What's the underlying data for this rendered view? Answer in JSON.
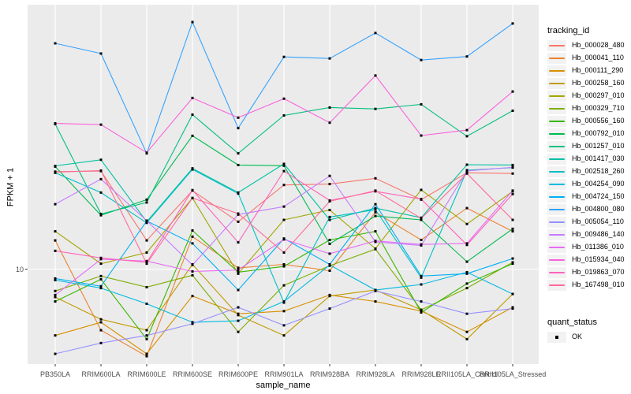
{
  "figure": {
    "background": "#FFFFFF",
    "panel_background": "#EBEBEB",
    "grid_color": "#FFFFFF",
    "tick_mark_color": "#333333",
    "tick_label_color": "#4D4D4D",
    "axis_title_color": "#000000",
    "marker_color": "#000000",
    "legend_key_background": "#F2F2F2"
  },
  "axes": {
    "x_title": "sample_name",
    "y_title": "FPKM + 1",
    "y_tick_labels": [
      "10"
    ]
  },
  "legend": {
    "tracking_title": "tracking_id",
    "quant_title": "quant_status",
    "quant_items": [
      {
        "label": "OK",
        "marker": "filled-black-square"
      }
    ]
  },
  "chart_data": {
    "type": "line",
    "title": "",
    "xlabel": "sample_name",
    "ylabel": "FPKM + 1",
    "y_scale": "log10",
    "ylim_log10": [
      0.43,
      2.59
    ],
    "y_ticks": [
      10
    ],
    "grid": "vertical major gridlines per category + horizontal gridline at y=10",
    "legend_position": "right",
    "marker": "small black square (quant_status OK)",
    "categories": [
      "PB350LA",
      "RRIM600LA",
      "RRIM600LE",
      "RRIM600SE",
      "RRIM600PE",
      "RRIM901LA",
      "RRIM928BA",
      "RRIM928LA",
      "RRIM928LE",
      "RRII105LA_Control",
      "RRII105LA_Stressed"
    ],
    "series": [
      {
        "name": "Hb_000028_480",
        "color": "#F8766D",
        "values": [
          38.6,
          38.9,
          14.9,
          29.7,
          19.3,
          32.1,
          32.5,
          35.2,
          26.2,
          38.0,
          37.6
        ]
      },
      {
        "name": "Hb_000041_110",
        "color": "#EA8331",
        "values": [
          14.9,
          4.3,
          3.0,
          15.7,
          10.2,
          10.7,
          9.8,
          22.0,
          15.0,
          23.3,
          16.9
        ]
      },
      {
        "name": "Hb_000111_290",
        "color": "#D89000",
        "values": [
          4.0,
          4.8,
          3.1,
          6.9,
          5.4,
          5.6,
          7.0,
          6.4,
          5.6,
          4.2,
          5.9
        ]
      },
      {
        "name": "Hb_000258_160",
        "color": "#C09B00",
        "values": [
          6.8,
          5.0,
          4.3,
          10.7,
          5.3,
          4.0,
          6.9,
          7.5,
          5.7,
          3.8,
          7.1
        ]
      },
      {
        "name": "Hb_000297_010",
        "color": "#A3A500",
        "values": [
          16.9,
          10.8,
          12.6,
          26.8,
          9.4,
          19.8,
          22.7,
          13.3,
          30.0,
          18.7,
          29.4
        ]
      },
      {
        "name": "Hb_000329_710",
        "color": "#7CAE00",
        "values": [
          7.4,
          9.1,
          7.8,
          9.2,
          4.2,
          8.0,
          10.5,
          13.2,
          5.7,
          7.7,
          11.0
        ]
      },
      {
        "name": "Hb_000556_160",
        "color": "#39B600",
        "values": [
          6.4,
          8.7,
          3.8,
          17.1,
          9.6,
          10.4,
          15.0,
          16.9,
          5.5,
          8.2,
          10.8
        ]
      },
      {
        "name": "Hb_000792_010",
        "color": "#00BB4E",
        "values": [
          41.4,
          21.1,
          26.2,
          63.4,
          42.3,
          41.9,
          14.2,
          20.9,
          19.8,
          11.1,
          17.5
        ]
      },
      {
        "name": "Hb_001257_010",
        "color": "#00BF7D",
        "values": [
          74.5,
          21.5,
          25.2,
          85.0,
          49.7,
          84.0,
          93.8,
          92.0,
          98.0,
          63.0,
          89.7
        ]
      },
      {
        "name": "Hb_001417_030",
        "color": "#00C1A3",
        "values": [
          41.8,
          45.5,
          19.3,
          40.4,
          28.9,
          43.0,
          19.8,
          23.3,
          20.4,
          42.5,
          42.3
        ]
      },
      {
        "name": "Hb_002518_260",
        "color": "#00BFC4",
        "values": [
          38.0,
          28.9,
          19.0,
          39.8,
          28.5,
          6.3,
          20.6,
          22.8,
          8.9,
          39.4,
          40.8
        ]
      },
      {
        "name": "Hb_004254_090",
        "color": "#00BAE0",
        "values": [
          8.6,
          7.7,
          6.2,
          4.8,
          4.9,
          6.4,
          10.6,
          7.5,
          8.1,
          9.6,
          7.1
        ]
      },
      {
        "name": "Hb_004724_150",
        "color": "#00B0F6",
        "values": [
          8.8,
          7.9,
          19.5,
          14.3,
          7.5,
          15.3,
          10.7,
          24.6,
          9.1,
          9.4,
          11.6
        ]
      },
      {
        "name": "Hb_004800_080",
        "color": "#35A2FF",
        "values": [
          228.0,
          198.0,
          49.7,
          306.0,
          70.5,
          189.0,
          185.0,
          263.0,
          181.0,
          190.0,
          300.0
        ]
      },
      {
        "name": "Hb_005054_110",
        "color": "#9590FF",
        "values": [
          3.1,
          3.6,
          4.0,
          4.7,
          5.9,
          4.6,
          5.8,
          7.4,
          6.4,
          5.4,
          5.8
        ]
      },
      {
        "name": "Hb_009486_140",
        "color": "#C77CFF",
        "values": [
          24.6,
          34.8,
          19.6,
          10.6,
          21.3,
          23.8,
          36.4,
          14.6,
          13.9,
          39.0,
          41.0
        ]
      },
      {
        "name": "Hb_011386_010",
        "color": "#E76BF3",
        "values": [
          7.0,
          11.5,
          11.2,
          9.7,
          9.9,
          15.1,
          12.4,
          14.8,
          14.1,
          14.3,
          29.7
        ]
      },
      {
        "name": "Hb_015934_040",
        "color": "#FA62DB",
        "values": [
          75.3,
          74.0,
          50.2,
          107.0,
          81.5,
          106.0,
          76.0,
          146.0,
          63.6,
          68.6,
          117.0
        ]
      },
      {
        "name": "Hb_019863_070",
        "color": "#FF62BC",
        "values": [
          12.9,
          11.7,
          11.0,
          29.9,
          14.5,
          38.9,
          25.9,
          29.4,
          26.4,
          14.0,
          28.3
        ]
      },
      {
        "name": "Hb_167498_010",
        "color": "#FF6A98",
        "values": [
          38.3,
          39.2,
          10.8,
          26.8,
          21.6,
          12.6,
          25.6,
          29.7,
          20.2,
          37.6,
          19.8
        ]
      }
    ]
  }
}
